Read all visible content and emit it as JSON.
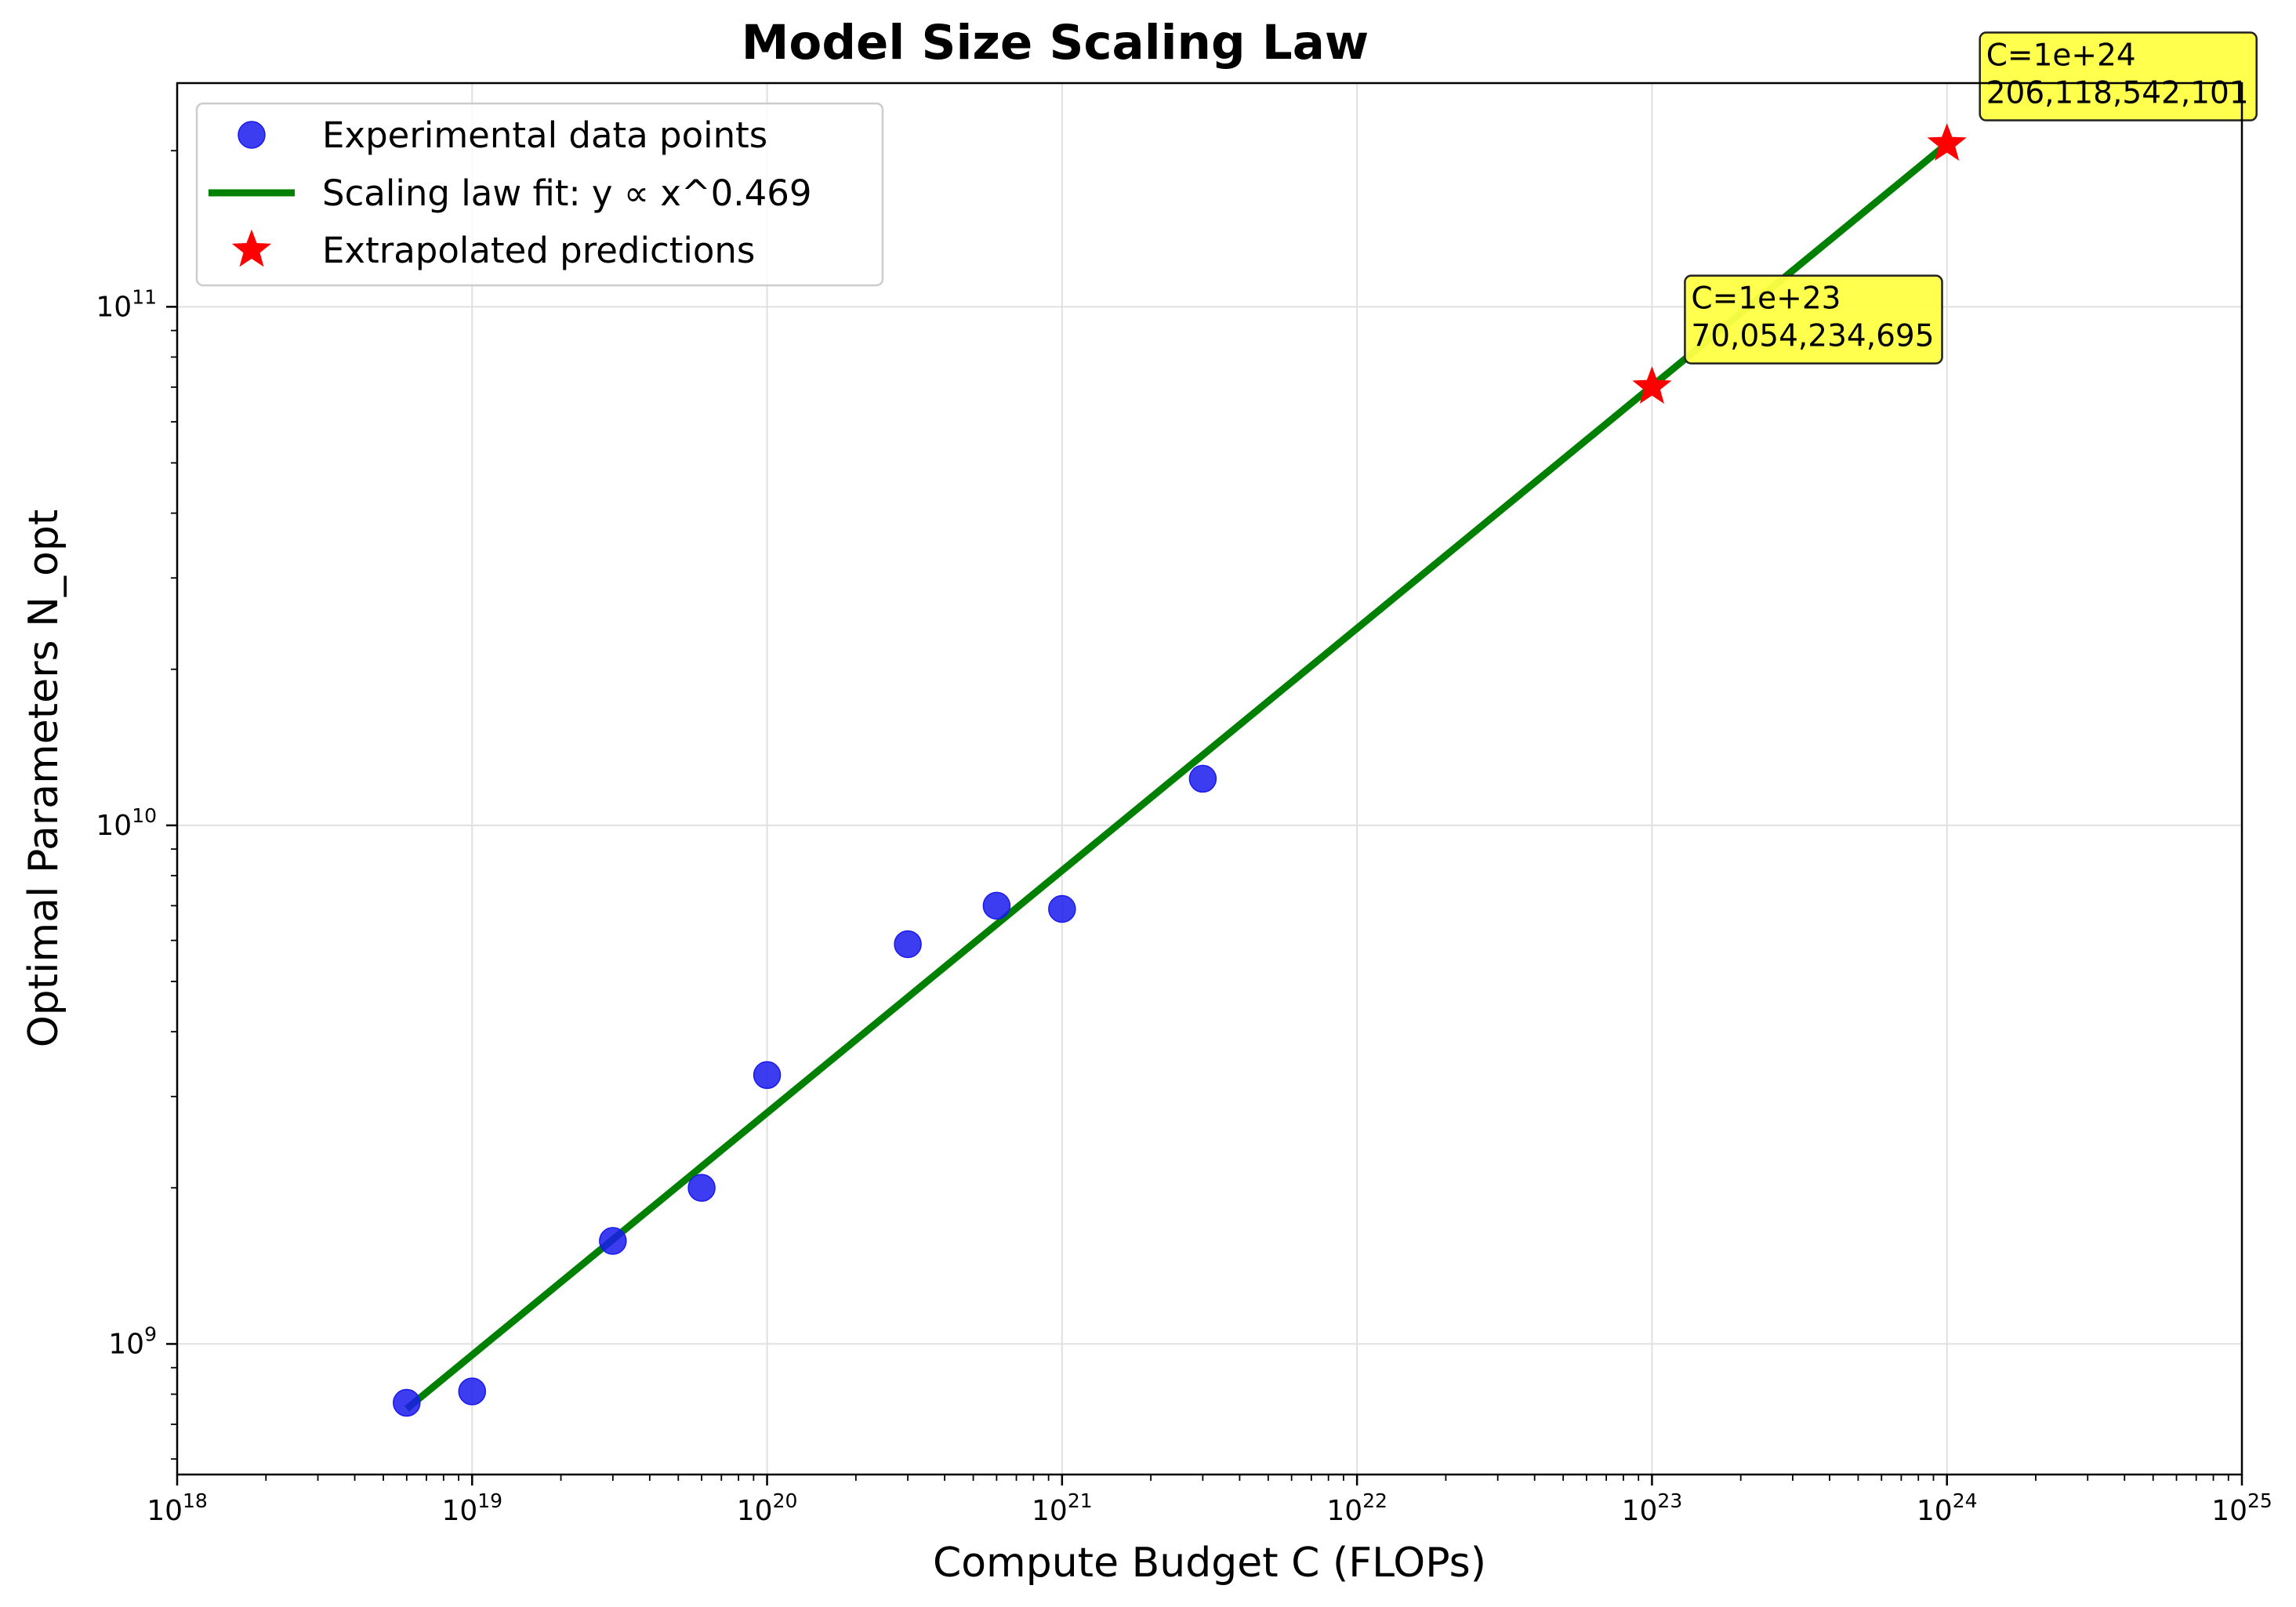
{
  "chart_data": {
    "type": "scatter",
    "title": "Model Size Scaling Law",
    "xlabel": "Compute Budget C (FLOPs)",
    "ylabel": "Optimal Parameters N_opt",
    "xscale": "log",
    "yscale": "log",
    "xlim": [
      1e+18,
      1e+25
    ],
    "ylim": [
      560000000,
      270000000000
    ],
    "grid": true,
    "legend_position": "top-left",
    "x_major_ticks": [
      {
        "value": 1e+18,
        "base": "10",
        "exp": "18"
      },
      {
        "value": 1e+19,
        "base": "10",
        "exp": "19"
      },
      {
        "value": 1e+20,
        "base": "10",
        "exp": "20"
      },
      {
        "value": 1e+21,
        "base": "10",
        "exp": "21"
      },
      {
        "value": 1e+22,
        "base": "10",
        "exp": "22"
      },
      {
        "value": 1e+23,
        "base": "10",
        "exp": "23"
      },
      {
        "value": 1e+24,
        "base": "10",
        "exp": "24"
      },
      {
        "value": 1e+25,
        "base": "10",
        "exp": "25"
      }
    ],
    "y_major_ticks": [
      {
        "value": 1000000000.0,
        "base": "10",
        "exp": "9"
      },
      {
        "value": 10000000000.0,
        "base": "10",
        "exp": "10"
      },
      {
        "value": 100000000000.0,
        "base": "10",
        "exp": "11"
      }
    ],
    "series": [
      {
        "name": "Experimental data points",
        "type": "scatter",
        "color": "#1a1aee",
        "marker": "circle",
        "points": [
          {
            "x": 6e+18,
            "y": 770000000
          },
          {
            "x": 1e+19,
            "y": 810000000
          },
          {
            "x": 3e+19,
            "y": 1580000000
          },
          {
            "x": 6e+19,
            "y": 2000000000
          },
          {
            "x": 1e+20,
            "y": 3300000000
          },
          {
            "x": 3e+20,
            "y": 5900000000
          },
          {
            "x": 6e+20,
            "y": 7000000000
          },
          {
            "x": 1e+21,
            "y": 6900000000
          },
          {
            "x": 3e+21,
            "y": 12300000000
          }
        ]
      },
      {
        "name": "Scaling law fit: y ∝ x^0.469",
        "type": "line",
        "color": "#008000",
        "points": [
          {
            "x": 6e+18,
            "y": 750000000
          },
          {
            "x": 1e+24,
            "y": 206118542101
          }
        ]
      },
      {
        "name": "Extrapolated predictions",
        "type": "scatter",
        "color": "#ff0000",
        "marker": "star",
        "points": [
          {
            "x": 1e+23,
            "y": 70054234695
          },
          {
            "x": 1e+24,
            "y": 206118542101
          }
        ]
      }
    ],
    "annotations": [
      {
        "line1": "C=1e+23",
        "line2": "70,054,234,695",
        "x": 1e+23,
        "y": 70054234695
      },
      {
        "line1": "C=1e+24",
        "line2": "206,118,542,101",
        "x": 1e+24,
        "y": 206118542101
      }
    ],
    "colors": {
      "annotation_fill": "#ffff44",
      "grid": "#e0e0e0"
    }
  }
}
